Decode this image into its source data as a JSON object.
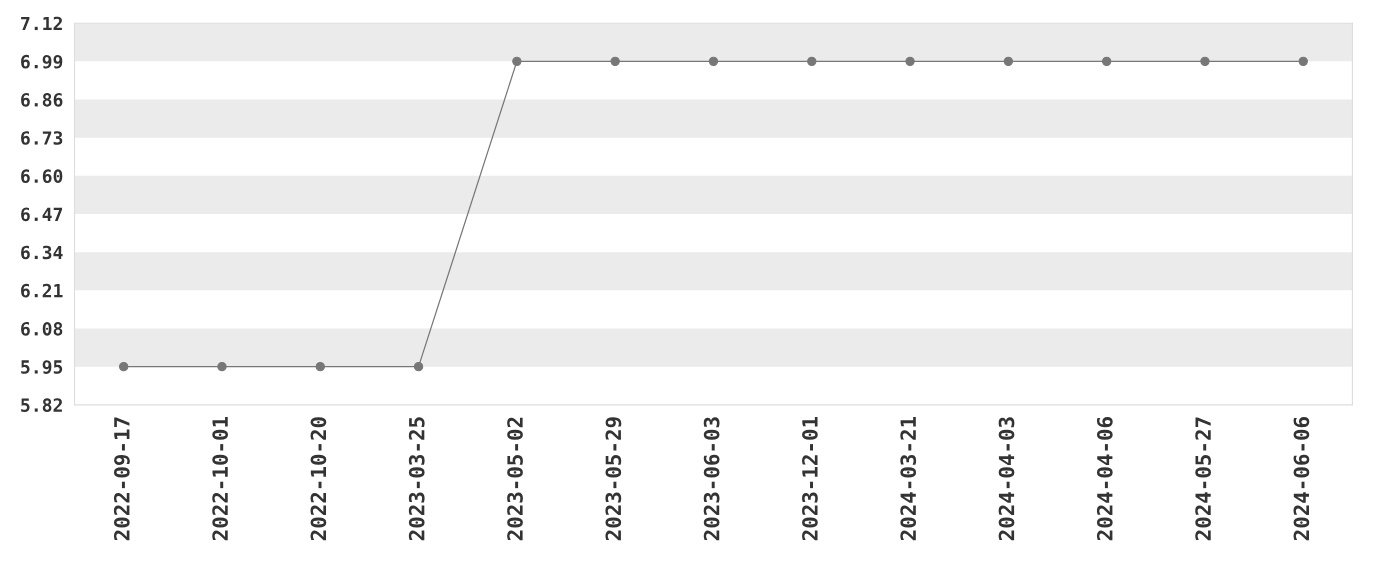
{
  "chart_data": {
    "type": "line",
    "categories": [
      "2022-09-17",
      "2022-10-01",
      "2022-10-20",
      "2023-03-25",
      "2023-05-02",
      "2023-05-29",
      "2023-06-03",
      "2023-12-01",
      "2024-03-21",
      "2024-04-03",
      "2024-04-06",
      "2024-05-27",
      "2024-06-06"
    ],
    "series": [
      {
        "color": "#777777",
        "values": [
          5.95,
          5.95,
          5.95,
          5.95,
          6.99,
          6.99,
          6.99,
          6.99,
          6.99,
          6.99,
          6.99,
          6.99,
          6.99
        ]
      }
    ],
    "ylim": [
      5.82,
      7.12
    ],
    "yticks": [
      5.82,
      5.95,
      6.08,
      6.21,
      6.34,
      6.47,
      {
        "value": 6.6,
        "label": "6.60"
      },
      6.73,
      6.86,
      6.99,
      7.12
    ],
    "bands": [
      {
        "axis": "y",
        "from": 5.95,
        "to": 6.08,
        "color": "#ebebeb"
      },
      {
        "axis": "y",
        "from": 6.21,
        "to": 6.34,
        "color": "#ebebeb"
      },
      {
        "axis": "y",
        "from": 6.47,
        "to": 6.6,
        "color": "#ebebeb"
      },
      {
        "axis": "y",
        "from": 6.73,
        "to": 6.86,
        "color": "#ebebeb"
      },
      {
        "axis": "y",
        "from": 6.99,
        "to": 7.12,
        "color": "#ebebeb"
      }
    ],
    "marker": "circle",
    "line_style": "solid",
    "grid": false,
    "legend": false
  }
}
